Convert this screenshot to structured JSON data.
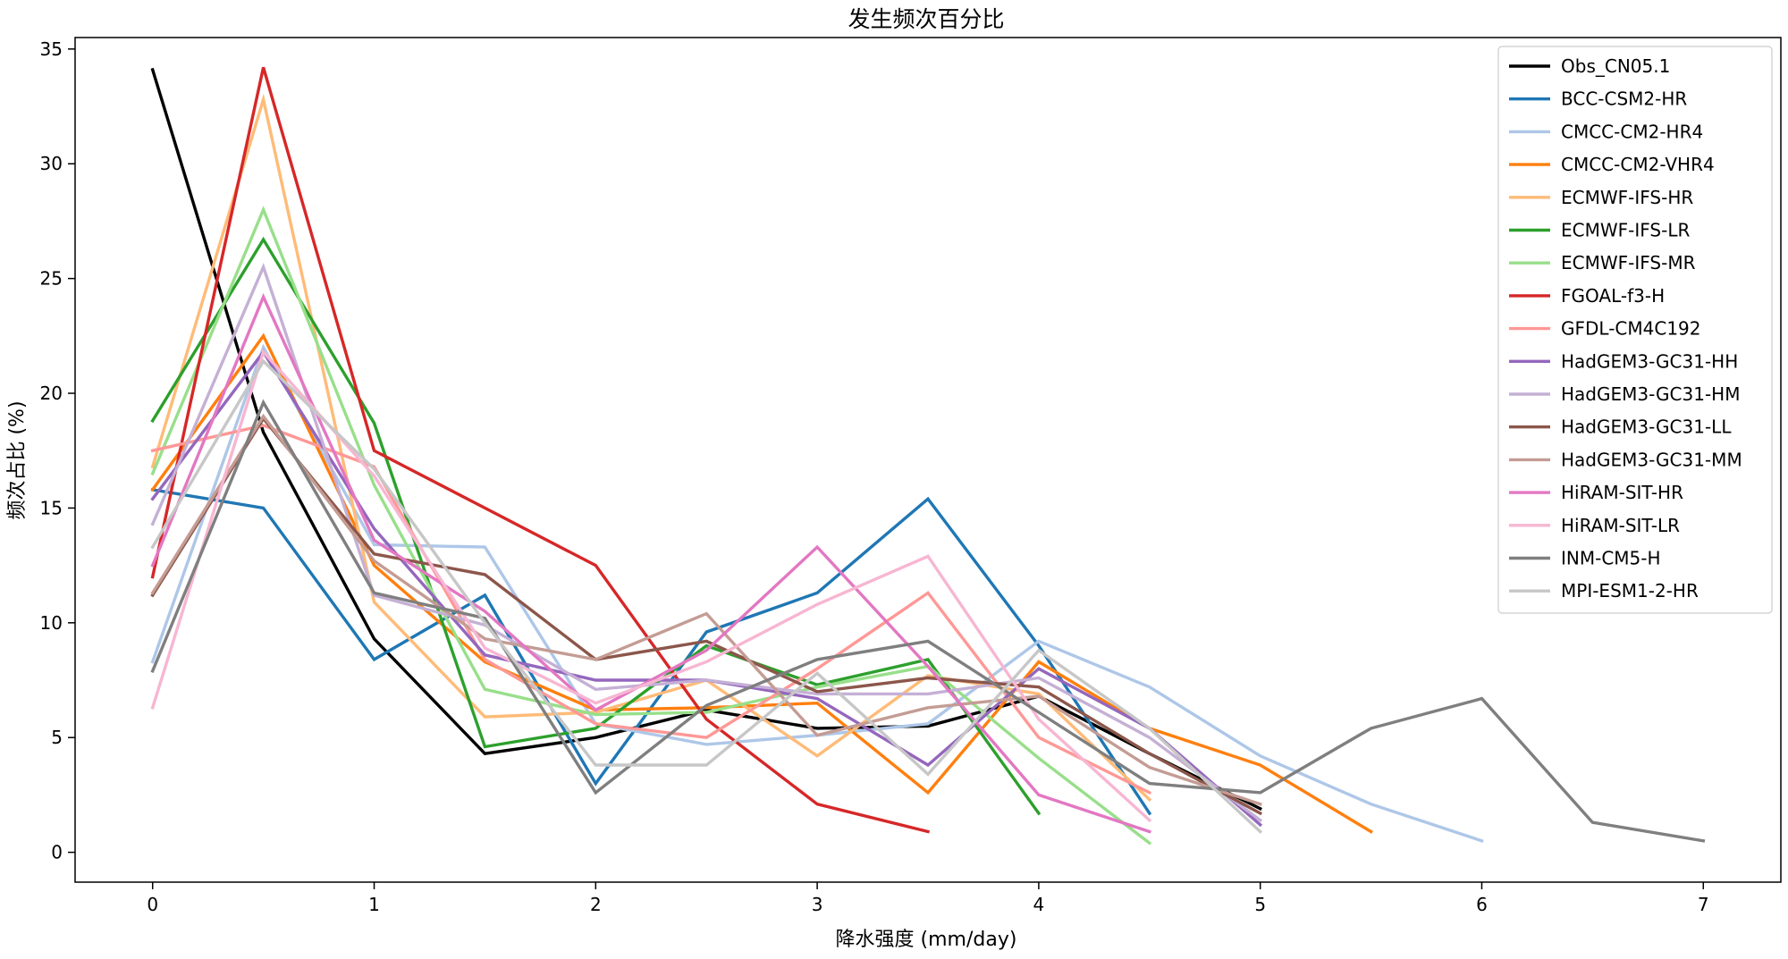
{
  "chart_data": {
    "type": "line",
    "title": "发生频次百分比",
    "xlabel": "降水强度 (mm/day)",
    "ylabel": "频次占比 (%)",
    "xlim": [
      -0.35,
      7.35
    ],
    "ylim": [
      -1.3,
      35.5
    ],
    "xticks": [
      0,
      1,
      2,
      3,
      4,
      5,
      6,
      7
    ],
    "yticks": [
      0,
      5,
      10,
      15,
      20,
      25,
      30,
      35
    ],
    "grid": false,
    "legend_position": "top-right",
    "series": [
      {
        "name": "Obs_CN05.1",
        "color": "#000000",
        "x": [
          0,
          0.5,
          1,
          1.5,
          2,
          2.5,
          3,
          3.5,
          4,
          4.5,
          5
        ],
        "y": [
          34.1,
          18.3,
          9.3,
          4.3,
          5.0,
          6.2,
          5.4,
          5.5,
          6.8,
          4.3,
          1.9
        ]
      },
      {
        "name": "BCC-CSM2-HR",
        "color": "#1f77b4",
        "x": [
          0,
          0.5,
          1,
          1.5,
          2,
          2.5,
          3,
          3.5,
          4,
          4.5
        ],
        "y": [
          15.8,
          15.0,
          8.4,
          11.2,
          3.0,
          9.6,
          11.3,
          15.4,
          9.0,
          1.7
        ]
      },
      {
        "name": "CMCC-CM2-HR4",
        "color": "#aec7e8",
        "x": [
          0,
          0.5,
          1,
          1.5,
          2,
          2.5,
          3,
          3.5,
          4,
          4.5,
          5,
          5.5,
          6
        ],
        "y": [
          8.3,
          22.0,
          13.4,
          13.3,
          5.6,
          4.7,
          5.1,
          5.6,
          9.2,
          7.2,
          4.2,
          2.1,
          0.5
        ]
      },
      {
        "name": "CMCC-CM2-VHR4",
        "color": "#ff7f0e",
        "x": [
          0,
          0.5,
          1,
          1.5,
          2,
          2.5,
          3,
          3.5,
          4,
          4.5,
          5,
          5.5
        ],
        "y": [
          15.8,
          22.5,
          12.5,
          8.3,
          6.2,
          6.3,
          6.5,
          2.6,
          8.3,
          5.4,
          3.8,
          0.9
        ]
      },
      {
        "name": "ECMWF-IFS-HR",
        "color": "#ffbb78",
        "x": [
          0,
          0.5,
          1,
          1.5,
          2,
          2.5,
          3,
          3.5,
          4,
          4.5
        ],
        "y": [
          16.8,
          32.8,
          10.9,
          5.9,
          6.1,
          7.5,
          4.2,
          7.7,
          6.9,
          2.3
        ]
      },
      {
        "name": "ECMWF-IFS-LR",
        "color": "#2ca02c",
        "x": [
          0,
          0.5,
          1,
          1.5,
          2,
          2.5,
          3,
          3.5,
          4
        ],
        "y": [
          18.8,
          26.7,
          18.7,
          4.6,
          5.4,
          9.0,
          7.3,
          8.4,
          1.7
        ]
      },
      {
        "name": "ECMWF-IFS-MR",
        "color": "#98df8a",
        "x": [
          0,
          0.5,
          1,
          1.5,
          2,
          2.5,
          3,
          3.5,
          4,
          4.5
        ],
        "y": [
          16.5,
          28.0,
          16.0,
          7.1,
          6.0,
          6.1,
          7.2,
          8.1,
          4.1,
          0.4
        ]
      },
      {
        "name": "FGOAL-f3-H",
        "color": "#d62728",
        "x": [
          0,
          0.5,
          1,
          1.5,
          2,
          2.5,
          3,
          3.5
        ],
        "y": [
          12.0,
          34.2,
          17.5,
          15.0,
          12.5,
          5.8,
          2.1,
          0.9
        ]
      },
      {
        "name": "GFDL-CM4C192",
        "color": "#ff9896",
        "x": [
          0,
          0.5,
          1,
          1.5,
          2,
          2.5,
          3,
          3.5,
          4,
          4.5
        ],
        "y": [
          17.5,
          18.6,
          16.8,
          8.4,
          5.6,
          5.0,
          8.0,
          11.3,
          5.0,
          2.6
        ]
      },
      {
        "name": "HadGEM3-GC31-HH",
        "color": "#9467bd",
        "x": [
          0,
          0.5,
          1,
          1.5,
          2,
          2.5,
          3,
          3.5,
          4,
          4.5,
          5
        ],
        "y": [
          15.4,
          21.8,
          14.1,
          8.6,
          7.5,
          7.5,
          6.7,
          3.8,
          8.0,
          5.4,
          1.2
        ]
      },
      {
        "name": "HadGEM3-GC31-HM",
        "color": "#c5b0d5",
        "x": [
          0,
          0.5,
          1,
          1.5,
          2,
          2.5,
          3,
          3.5,
          4,
          4.5,
          5
        ],
        "y": [
          14.3,
          25.5,
          11.2,
          9.9,
          7.1,
          7.5,
          6.9,
          6.9,
          7.6,
          5.0,
          1.4
        ]
      },
      {
        "name": "HadGEM3-GC31-LL",
        "color": "#8c564b",
        "x": [
          0,
          0.5,
          1,
          1.5,
          2,
          2.5,
          3,
          3.5,
          4,
          4.5,
          5
        ],
        "y": [
          11.2,
          18.9,
          13.0,
          12.1,
          8.4,
          9.2,
          7.0,
          7.6,
          7.2,
          4.3,
          1.7
        ]
      },
      {
        "name": "HadGEM3-GC31-MM",
        "color": "#c49c94",
        "x": [
          0,
          0.5,
          1,
          1.5,
          2,
          2.5,
          3,
          3.5,
          4,
          4.5,
          5
        ],
        "y": [
          11.3,
          19.0,
          12.7,
          9.3,
          8.4,
          10.4,
          5.1,
          6.3,
          6.8,
          3.7,
          2.1
        ]
      },
      {
        "name": "HiRAM-SIT-HR",
        "color": "#e377c2",
        "x": [
          0,
          0.5,
          1,
          1.5,
          2,
          2.5,
          3,
          3.5,
          4,
          4.5
        ],
        "y": [
          12.5,
          24.2,
          13.6,
          10.5,
          6.2,
          8.8,
          13.3,
          8.1,
          2.5,
          0.9
        ]
      },
      {
        "name": "HiRAM-SIT-LR",
        "color": "#f7b6d2",
        "x": [
          0,
          0.5,
          1,
          1.5,
          2,
          2.5,
          3,
          3.5,
          4,
          4.5
        ],
        "y": [
          6.3,
          21.8,
          16.4,
          8.9,
          6.5,
          8.3,
          10.8,
          12.9,
          5.8,
          1.4
        ]
      },
      {
        "name": "INM-CM5-H",
        "color": "#7f7f7f",
        "x": [
          0,
          0.5,
          1,
          1.5,
          2,
          2.5,
          3,
          3.5,
          4,
          4.5,
          5,
          5.5,
          6,
          6.5,
          7
        ],
        "y": [
          7.9,
          19.6,
          11.3,
          10.2,
          2.6,
          6.4,
          8.4,
          9.2,
          6.1,
          3.0,
          2.6,
          5.4,
          6.7,
          1.3,
          0.5
        ]
      },
      {
        "name": "MPI-ESM1-2-HR",
        "color": "#c7c7c7",
        "x": [
          0,
          0.5,
          1,
          1.5,
          2,
          2.5,
          3,
          3.5,
          4,
          4.5,
          5
        ],
        "y": [
          13.3,
          21.4,
          16.7,
          10.0,
          3.8,
          3.8,
          7.8,
          3.4,
          8.8,
          5.4,
          0.9
        ]
      }
    ]
  }
}
